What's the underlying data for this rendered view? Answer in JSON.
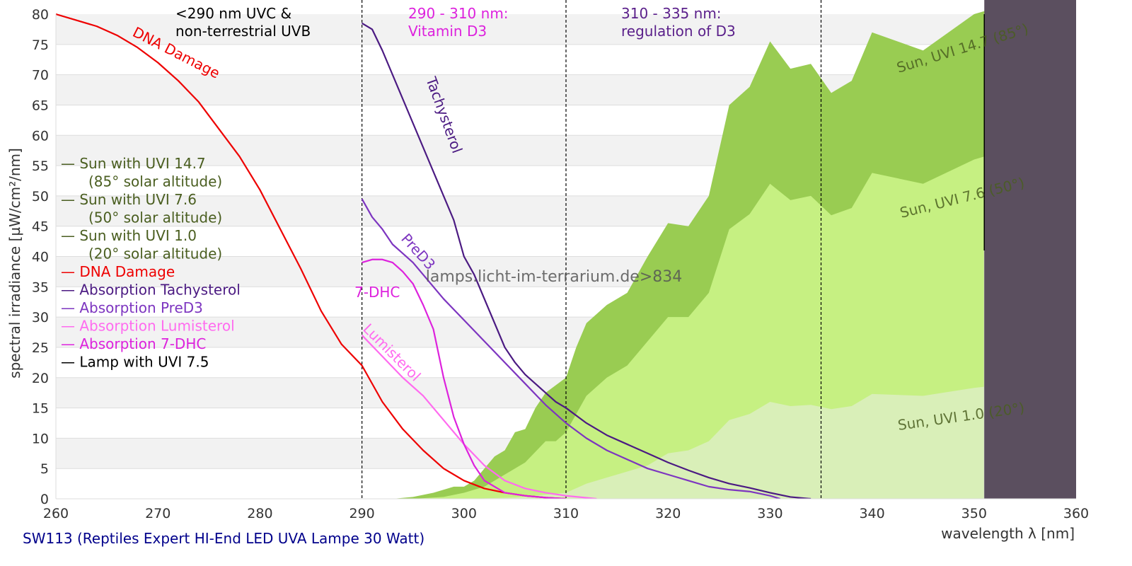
{
  "chart_data": {
    "type": "line",
    "title": "SW113 (Reptiles Expert HI-End LED UVA Lampe 30 Watt)",
    "xlabel": "wavelength λ [nm]",
    "ylabel": "spectral irradiance [µW/cm²/nm]",
    "xlim": [
      260,
      360
    ],
    "ylim": [
      0,
      80
    ],
    "xticks": [
      260,
      270,
      280,
      290,
      300,
      310,
      320,
      330,
      340,
      350,
      360
    ],
    "yticks": [
      0,
      5,
      10,
      15,
      20,
      25,
      30,
      35,
      40,
      45,
      50,
      55,
      60,
      65,
      70,
      75,
      80
    ],
    "grid": "alternating horizontal bands",
    "watermark": "lamps.licht-im-terrarium.de>834",
    "regions": [
      {
        "boundary": 290,
        "label_lines": [
          "<290 nm UVC &",
          "non-terrestrial UVB"
        ],
        "color": "#000000"
      },
      {
        "boundary": 310,
        "label_lines": [
          "290 - 310 nm:",
          "Vitamin D3"
        ],
        "color": "#dd22dd"
      },
      {
        "boundary": 335,
        "label_lines": [
          "310 - 335 nm:",
          "regulation of D3"
        ],
        "color": "#5a1f8a"
      }
    ],
    "lamp_region_start": 351,
    "legend": [
      {
        "label": "— Sun with UVI 14.7",
        "sub": "(85° solar altitude)",
        "color": "#4a5e20"
      },
      {
        "label": "— Sun with UVI 7.6",
        "sub": "(50° solar altitude)",
        "color": "#4a5e20"
      },
      {
        "label": "— Sun with UVI 1.0",
        "sub": "(20° solar altitude)",
        "color": "#4a5e20"
      },
      {
        "label": "— DNA Damage",
        "color": "#ee0000"
      },
      {
        "label": "— Absorption Tachysterol",
        "color": "#4b1a82"
      },
      {
        "label": "— Absorption PreD3",
        "color": "#7d35c0"
      },
      {
        "label": "— Absorption Lumisterol",
        "color": "#ff6bef"
      },
      {
        "label": "— Absorption 7-DHC",
        "color": "#dd22dd"
      },
      {
        "label": "— Lamp with UVI 7.5",
        "color": "#000000"
      }
    ],
    "areas": [
      {
        "name": "Sun, UVI 14.7 (85°)",
        "color": "#99cc52",
        "x": [
          293,
          295,
          297,
          299,
          300,
          301,
          303,
          304,
          305,
          306,
          307,
          308,
          310,
          311,
          312,
          314,
          316,
          318,
          320,
          322,
          324,
          326,
          328,
          330,
          332,
          334,
          336,
          338,
          340,
          345,
          350,
          351,
          355,
          360
        ],
        "y": [
          0,
          0.3,
          1,
          2,
          2,
          3,
          7,
          8,
          11,
          11.5,
          15,
          17.5,
          20,
          25,
          29,
          32,
          34,
          40,
          45.5,
          45,
          50,
          65,
          68,
          75.5,
          71,
          71.8,
          67,
          69,
          77,
          74,
          80,
          80.5,
          83,
          79.5
        ]
      },
      {
        "name": "Sun, UVI 7.6 (50°)",
        "color": "#c6f082",
        "x": [
          295,
          298,
          300,
          302,
          304,
          306,
          308,
          309,
          310,
          312,
          314,
          316,
          318,
          320,
          322,
          324,
          326,
          328,
          330,
          332,
          334,
          336,
          338,
          340,
          345,
          350,
          351,
          355,
          360
        ],
        "y": [
          0,
          0.3,
          1,
          2,
          4,
          6,
          9.5,
          9.5,
          11,
          17,
          20,
          22,
          26,
          30,
          30,
          34,
          44.5,
          47,
          52,
          49.3,
          50,
          46.8,
          48,
          53.8,
          52,
          56,
          56.5,
          58.7,
          56.3
        ]
      },
      {
        "name": "Sun, UVI 1.0 (20°)",
        "color": "#d9efb8",
        "x": [
          300,
          305,
          310,
          312,
          314,
          316,
          318,
          320,
          322,
          324,
          326,
          328,
          330,
          332,
          334,
          336,
          338,
          340,
          345,
          350,
          351,
          355,
          360
        ],
        "y": [
          0,
          0.2,
          1,
          2.5,
          3.5,
          4.5,
          5.5,
          7.5,
          8,
          9.5,
          13,
          14,
          16,
          15.3,
          15.5,
          14.8,
          15.3,
          17.3,
          17,
          18.3,
          18.5,
          19.1,
          18.4
        ]
      }
    ],
    "series": [
      {
        "name": "DNA Damage",
        "color": "#ee0000",
        "x": [
          260,
          262,
          264,
          266,
          268,
          270,
          272,
          274,
          276,
          278,
          280,
          282,
          284,
          286,
          288,
          290,
          292,
          294,
          296,
          298,
          300,
          302,
          304,
          306,
          308,
          310
        ],
        "y": [
          80,
          79,
          78,
          76.5,
          74.5,
          72,
          69,
          65.5,
          61,
          56.5,
          51,
          44.5,
          38,
          31,
          25.5,
          22,
          16,
          11.5,
          8,
          5,
          3,
          1.7,
          1,
          0.5,
          0.2,
          0
        ]
      },
      {
        "name": "Tachysterol",
        "color": "#4b1a82",
        "x": [
          290,
          291,
          292,
          293,
          294,
          295,
          296,
          297,
          298,
          299,
          300,
          301,
          302,
          303,
          304,
          305,
          306,
          307,
          308,
          309,
          310,
          312,
          314,
          316,
          318,
          320,
          322,
          324,
          326,
          328,
          330,
          332,
          334
        ],
        "y": [
          78.5,
          77.5,
          74,
          70,
          66,
          62,
          58,
          54,
          50,
          46,
          40,
          37,
          33,
          29,
          25,
          22.5,
          20.5,
          19,
          17.5,
          16,
          15,
          12.5,
          10.5,
          9,
          7.5,
          6,
          4.7,
          3.5,
          2.5,
          1.8,
          1,
          0.3,
          0
        ]
      },
      {
        "name": "PreD3",
        "color": "#7d35c0",
        "x": [
          290,
          291,
          292,
          293,
          294,
          295,
          296,
          297,
          298,
          300,
          302,
          304,
          306,
          308,
          310,
          312,
          314,
          316,
          318,
          320,
          322,
          324,
          326,
          328,
          330,
          331
        ],
        "y": [
          49.5,
          46.5,
          44.5,
          42,
          40.5,
          39,
          37,
          35,
          33,
          29.5,
          26,
          22.5,
          19,
          15.5,
          12.5,
          10,
          8,
          6.5,
          5,
          4,
          3,
          2,
          1.5,
          1.2,
          0.5,
          0
        ]
      },
      {
        "name": "Lumisterol",
        "color": "#ff6bef",
        "x": [
          290,
          292,
          294,
          296,
          298,
          300,
          302,
          304,
          306,
          308,
          310,
          313
        ],
        "y": [
          27,
          23.5,
          20,
          17,
          13,
          9,
          5.5,
          3,
          1.7,
          1,
          0.5,
          0
        ]
      },
      {
        "name": "7-DHC",
        "color": "#dd22dd",
        "x": [
          290,
          291,
          292,
          293,
          294,
          295,
          296,
          297,
          298,
          299,
          300,
          301,
          302,
          303,
          304,
          306,
          308,
          310
        ],
        "y": [
          39,
          39.5,
          39.5,
          39,
          37.5,
          35.5,
          32,
          28,
          20,
          13.5,
          9,
          5.5,
          3,
          2,
          1,
          0.5,
          0.2,
          0
        ]
      },
      {
        "name": "Lamp with UVI 7.5",
        "color": "#000000",
        "x": [
          351,
          351
        ],
        "y": [
          41,
          80
        ]
      }
    ],
    "annotations": {
      "dna": "DNA Damage",
      "tachysterol": "Tachysterol",
      "pred3": "PreD3",
      "dhc": "7-DHC",
      "lumisterol": "Lumisterol",
      "sun_high": "Sun, UVI 14.7 (85°)",
      "sun_mid": "Sun, UVI 7.6 (50°)",
      "sun_low": "Sun, UVI 1.0 (20°)"
    },
    "colors": {
      "lamp_region": "#5b4f5f",
      "band": "#f2f2f2",
      "title": "#00008b"
    }
  }
}
